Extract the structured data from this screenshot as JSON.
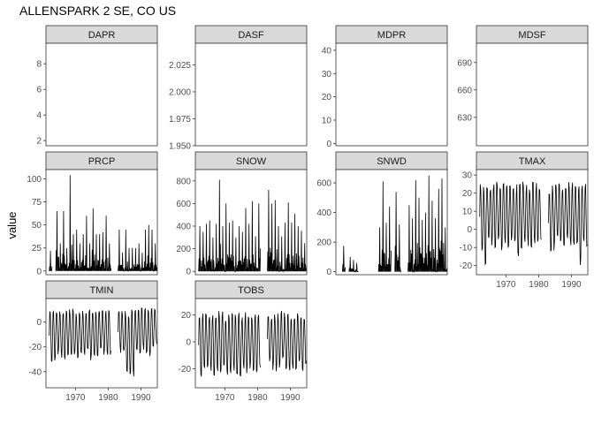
{
  "chart_data": {
    "type": "line",
    "title": "ALLENSPARK 2 SE, CO US",
    "ylabel": "value",
    "grid": false,
    "facet_layout": "grid",
    "x_axis": {
      "ticks": [
        1970,
        1980,
        1990
      ],
      "range": [
        1961,
        1995
      ]
    },
    "panels": [
      {
        "name": "DAPR",
        "yticks": [
          2,
          4,
          6,
          8
        ],
        "ylim": [
          1.6,
          9.6
        ],
        "xticks_visible": false,
        "x": [],
        "values": []
      },
      {
        "name": "DASF",
        "yticks": [
          1.95,
          1.975,
          2.0,
          2.025
        ],
        "ytick_labels": [
          "1.950",
          "1.975",
          "2.000",
          "2.025"
        ],
        "ylim": [
          1.95,
          2.045
        ],
        "xticks_visible": false,
        "x": [],
        "values": []
      },
      {
        "name": "MDPR",
        "yticks": [
          0,
          10,
          20,
          30,
          40
        ],
        "ylim": [
          -1,
          43
        ],
        "xticks_visible": false,
        "x": [],
        "values": []
      },
      {
        "name": "MDSF",
        "yticks": [
          630,
          660,
          690
        ],
        "ylim": [
          599,
          711
        ],
        "xticks_visible": false,
        "x": [],
        "values": []
      },
      {
        "name": "PRCP",
        "yticks": [
          0,
          25,
          50,
          75,
          100
        ],
        "ylim": [
          -4,
          110
        ],
        "xticks_visible": false,
        "x": [
          1962,
          1964,
          1965,
          1966,
          1967,
          1968,
          1969,
          1970,
          1971,
          1972,
          1973,
          1974,
          1975,
          1976,
          1977,
          1978,
          1979,
          1980,
          1983,
          1984,
          1985,
          1986,
          1987,
          1988,
          1989,
          1990,
          1991,
          1992,
          1993,
          1994
        ],
        "values": [
          22,
          65,
          30,
          65,
          25,
          104,
          40,
          45,
          30,
          40,
          60,
          30,
          68,
          40,
          40,
          42,
          60,
          30,
          45,
          20,
          45,
          25,
          25,
          25,
          30,
          20,
          45,
          50,
          45,
          30
        ]
      },
      {
        "name": "SNOW",
        "yticks": [
          0,
          200,
          400,
          600,
          800
        ],
        "ylim": [
          -30,
          900
        ],
        "xticks_visible": false,
        "x": [
          1962,
          1963,
          1964,
          1965,
          1966,
          1967,
          1968,
          1969,
          1970,
          1971,
          1972,
          1973,
          1974,
          1975,
          1976,
          1977,
          1978,
          1979,
          1980,
          1983,
          1984,
          1985,
          1986,
          1987,
          1988,
          1989,
          1990,
          1991,
          1992,
          1993,
          1994
        ],
        "values": [
          400,
          350,
          420,
          450,
          300,
          420,
          810,
          400,
          600,
          430,
          450,
          300,
          400,
          350,
          560,
          420,
          620,
          310,
          600,
          720,
          600,
          630,
          400,
          310,
          430,
          610,
          430,
          510,
          400,
          360,
          250
        ]
      },
      {
        "name": "SNWD",
        "yticks": [
          0,
          200,
          400,
          600
        ],
        "ylim": [
          -20,
          690
        ],
        "xticks_visible": false,
        "x": [
          1963,
          1965,
          1966,
          1967,
          1974,
          1975,
          1976,
          1977,
          1979,
          1980,
          1983,
          1984,
          1985,
          1986,
          1987,
          1988,
          1989,
          1990,
          1991,
          1992,
          1993,
          1994
        ],
        "values": [
          175,
          100,
          80,
          60,
          300,
          610,
          330,
          440,
          540,
          320,
          450,
          360,
          620,
          500,
          350,
          400,
          650,
          480,
          360,
          560,
          630,
          300
        ]
      },
      {
        "name": "TMAX",
        "yticks": [
          -20,
          -10,
          0,
          10,
          20,
          30
        ],
        "ylim": [
          -25,
          33
        ],
        "xticks_visible": true,
        "x": [
          1962,
          1963,
          1964,
          1965,
          1966,
          1967,
          1968,
          1969,
          1970,
          1971,
          1972,
          1973,
          1974,
          1975,
          1976,
          1977,
          1978,
          1979,
          1980,
          1983,
          1984,
          1985,
          1986,
          1987,
          1988,
          1989,
          1990,
          1991,
          1992,
          1993,
          1994
        ],
        "max": [
          29,
          29,
          30,
          28,
          29,
          30,
          28,
          29,
          30,
          29,
          30,
          28,
          29,
          30,
          29,
          28,
          30,
          29,
          29,
          27,
          28,
          29,
          29,
          29,
          30,
          30,
          29,
          29,
          28,
          29,
          29
        ],
        "min": [
          -15,
          -24,
          -10,
          -12,
          -15,
          -10,
          -18,
          -12,
          -15,
          -10,
          -12,
          -18,
          -15,
          -10,
          -12,
          -15,
          -12,
          -10,
          -10,
          -20,
          -15,
          -10,
          -12,
          -15,
          -10,
          -12,
          -15,
          -12,
          -24,
          -10,
          -15
        ]
      },
      {
        "name": "TMIN",
        "yticks": [
          -40,
          -20,
          0
        ],
        "ylim": [
          -53,
          19
        ],
        "xticks_visible": true,
        "x": [
          1962,
          1963,
          1964,
          1965,
          1966,
          1967,
          1968,
          1969,
          1970,
          1971,
          1972,
          1973,
          1974,
          1975,
          1976,
          1977,
          1978,
          1979,
          1980,
          1983,
          1984,
          1985,
          1986,
          1987,
          1988,
          1989,
          1990,
          1991,
          1992,
          1993,
          1994
        ],
        "max": [
          13,
          14,
          15,
          13,
          14,
          13,
          15,
          14,
          13,
          14,
          15,
          13,
          14,
          13,
          14,
          15,
          13,
          14,
          13,
          12,
          13,
          14,
          12,
          15,
          14,
          13,
          14,
          15,
          13,
          14,
          13
        ],
        "min": [
          -35,
          -38,
          -30,
          -32,
          -35,
          -30,
          -33,
          -30,
          -38,
          -30,
          -32,
          -28,
          -35,
          -30,
          -33,
          -28,
          -30,
          -32,
          -30,
          -28,
          -30,
          -50,
          -51,
          -51,
          -28,
          -30,
          -25,
          -30,
          -32,
          -25,
          -20
        ]
      },
      {
        "name": "TOBS",
        "yticks": [
          -20,
          0,
          20
        ],
        "ylim": [
          -34,
          32
        ],
        "xticks_visible": true,
        "x": [
          1962,
          1963,
          1964,
          1965,
          1966,
          1967,
          1968,
          1969,
          1970,
          1971,
          1972,
          1973,
          1974,
          1975,
          1976,
          1977,
          1978,
          1979,
          1980,
          1983,
          1984,
          1985,
          1986,
          1987,
          1988,
          1989,
          1990,
          1991,
          1992,
          1993,
          1994
        ],
        "max": [
          25,
          26,
          27,
          25,
          26,
          25,
          27,
          26,
          25,
          26,
          27,
          25,
          26,
          25,
          27,
          26,
          25,
          27,
          26,
          24,
          25,
          26,
          25,
          27,
          26,
          25,
          26,
          27,
          25,
          26,
          25
        ],
        "min": [
          -30,
          -28,
          -25,
          -27,
          -30,
          -26,
          -28,
          -25,
          -30,
          -27,
          -25,
          -28,
          -30,
          -26,
          -28,
          -25,
          -27,
          -30,
          -25,
          -20,
          -25,
          -27,
          -25,
          -20,
          -25,
          -28,
          -25,
          -27,
          -22,
          -25,
          -20
        ]
      }
    ]
  }
}
